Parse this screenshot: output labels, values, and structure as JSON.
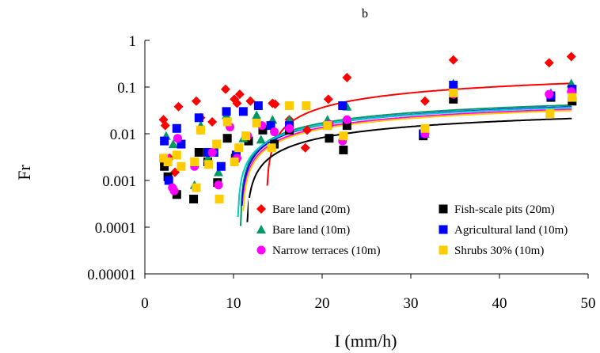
{
  "chart_data": {
    "type": "scatter",
    "title": "b",
    "xlabel": "I (mm/h)",
    "ylabel": "Fr",
    "xlim": [
      0,
      50
    ],
    "ylim": [
      1e-05,
      1
    ],
    "yscale": "log",
    "x_ticks": [
      "0",
      "10",
      "20",
      "30",
      "40",
      "50"
    ],
    "x_tick_values": [
      0,
      10,
      20,
      30,
      40,
      50
    ],
    "y_ticks": [
      "1",
      "0.1",
      "0.01",
      "0.001",
      "0.0001",
      "0.00001"
    ],
    "y_tick_values": [
      1,
      0.1,
      0.01,
      0.001,
      0.0001,
      1e-05
    ],
    "grid": false,
    "legend_position": "bottom-center",
    "series": [
      {
        "name": "Bare land (20m)",
        "color": "#ff0000",
        "marker": "diamond",
        "points": [
          [
            2.1,
            0.02
          ],
          [
            2.3,
            0.015
          ],
          [
            2.8,
            0.003
          ],
          [
            3.4,
            0.0015
          ],
          [
            3.8,
            0.038
          ],
          [
            5.8,
            0.05
          ],
          [
            6.3,
            0.022
          ],
          [
            7.6,
            0.018
          ],
          [
            9.1,
            0.09
          ],
          [
            10.1,
            0.055
          ],
          [
            10.4,
            0.045
          ],
          [
            10.7,
            0.07
          ],
          [
            11.9,
            0.05
          ],
          [
            14.4,
            0.045
          ],
          [
            14.7,
            0.043
          ],
          [
            16.3,
            0.02
          ],
          [
            18.1,
            0.005
          ],
          [
            18.3,
            0.012
          ],
          [
            20.7,
            0.055
          ],
          [
            22.8,
            0.16
          ],
          [
            31.6,
            0.05
          ],
          [
            34.8,
            0.38
          ],
          [
            45.6,
            0.33
          ],
          [
            48.1,
            0.45
          ]
        ]
      },
      {
        "name": "Fish-scale pits (20m)",
        "color": "#000000",
        "marker": "square",
        "points": [
          [
            2.2,
            0.002
          ],
          [
            2.6,
            0.0012
          ],
          [
            3.6,
            0.0005
          ],
          [
            5.5,
            0.0004
          ],
          [
            6.1,
            0.004
          ],
          [
            7.1,
            0.0025
          ],
          [
            8.2,
            0.0009
          ],
          [
            9.3,
            0.008
          ],
          [
            10.2,
            0.003
          ],
          [
            11.7,
            0.007
          ],
          [
            13.3,
            0.012
          ],
          [
            14.6,
            0.006
          ],
          [
            16.3,
            0.012
          ],
          [
            20.8,
            0.008
          ],
          [
            22.4,
            0.0045
          ],
          [
            22.8,
            0.015
          ],
          [
            31.4,
            0.009
          ],
          [
            34.8,
            0.055
          ],
          [
            45.8,
            0.06
          ],
          [
            48.2,
            0.05
          ]
        ]
      },
      {
        "name": "Bare land (10m)",
        "color": "#009966",
        "marker": "triangle",
        "points": [
          [
            2.4,
            0.009
          ],
          [
            3.2,
            0.006
          ],
          [
            5.6,
            0.0008
          ],
          [
            6.3,
            0.015
          ],
          [
            7.1,
            0.003
          ],
          [
            8.3,
            0.0015
          ],
          [
            9.2,
            0.025
          ],
          [
            10.3,
            0.004
          ],
          [
            11.1,
            0.008
          ],
          [
            12.6,
            0.025
          ],
          [
            13.1,
            0.0075
          ],
          [
            14.4,
            0.02
          ],
          [
            16.3,
            0.02
          ],
          [
            20.6,
            0.02
          ],
          [
            22.8,
            0.038
          ],
          [
            31.6,
            0.01
          ],
          [
            34.8,
            0.12
          ],
          [
            45.8,
            0.075
          ],
          [
            48.1,
            0.12
          ]
        ]
      },
      {
        "name": "Agricultural land (10m)",
        "color": "#0000ff",
        "marker": "square",
        "points": [
          [
            2.2,
            0.007
          ],
          [
            2.7,
            0.001
          ],
          [
            3.6,
            0.013
          ],
          [
            4.1,
            0.006
          ],
          [
            6.1,
            0.022
          ],
          [
            7.1,
            0.004
          ],
          [
            7.8,
            0.004
          ],
          [
            8.6,
            0.002
          ],
          [
            9.2,
            0.03
          ],
          [
            10.3,
            0.0035
          ],
          [
            11.1,
            0.03
          ],
          [
            12.8,
            0.04
          ],
          [
            14.2,
            0.015
          ],
          [
            16.3,
            0.015
          ],
          [
            20.6,
            0.015
          ],
          [
            22.3,
            0.04
          ],
          [
            31.4,
            0.01
          ],
          [
            34.8,
            0.11
          ],
          [
            45.8,
            0.065
          ],
          [
            48.2,
            0.09
          ]
        ]
      },
      {
        "name": "Narrow terraces (10m)",
        "color": "#ff00ff",
        "marker": "circle",
        "points": [
          [
            2.4,
            0.003
          ],
          [
            3.1,
            0.0007
          ],
          [
            3.3,
            0.0006
          ],
          [
            3.7,
            0.008
          ],
          [
            5.6,
            0.002
          ],
          [
            6.3,
            0.012
          ],
          [
            7.6,
            0.004
          ],
          [
            8.3,
            0.0008
          ],
          [
            9.6,
            0.014
          ],
          [
            10.4,
            0.003
          ],
          [
            11.6,
            0.009
          ],
          [
            13.2,
            0.015
          ],
          [
            14.6,
            0.011
          ],
          [
            16.3,
            0.013
          ],
          [
            20.8,
            0.016
          ],
          [
            22.3,
            0.007
          ],
          [
            22.8,
            0.02
          ],
          [
            31.6,
            0.01
          ],
          [
            34.8,
            0.07
          ],
          [
            45.6,
            0.07
          ],
          [
            48.1,
            0.08
          ]
        ]
      },
      {
        "name": "Shrubs 30% (10m)",
        "color": "#ffcc00",
        "marker": "square",
        "points": [
          [
            2.1,
            0.003
          ],
          [
            2.6,
            0.0025
          ],
          [
            3.6,
            0.0035
          ],
          [
            4.1,
            0.002
          ],
          [
            5.6,
            0.0025
          ],
          [
            5.8,
            0.0007
          ],
          [
            6.3,
            0.012
          ],
          [
            7.2,
            0.0022
          ],
          [
            8.1,
            0.006
          ],
          [
            8.4,
            0.0004
          ],
          [
            9.3,
            0.018
          ],
          [
            10.1,
            0.0025
          ],
          [
            10.6,
            0.005
          ],
          [
            11.4,
            0.009
          ],
          [
            12.6,
            0.017
          ],
          [
            14.3,
            0.005
          ],
          [
            16.3,
            0.04
          ],
          [
            18.2,
            0.04
          ],
          [
            20.6,
            0.015
          ],
          [
            22.4,
            0.009
          ],
          [
            31.6,
            0.013
          ],
          [
            34.8,
            0.075
          ],
          [
            45.7,
            0.027
          ],
          [
            48.2,
            0.06
          ]
        ]
      }
    ],
    "fit_curves": [
      {
        "color": "#ff0000",
        "a": 0.22,
        "b": 0.25
      },
      {
        "color": "#009966",
        "a": 0.063,
        "b": 0.065
      },
      {
        "color": "#0000ff",
        "a": 0.058,
        "b": 0.06
      },
      {
        "color": "#00cccc",
        "a": 0.055,
        "b": 0.056
      },
      {
        "color": "#ff00ff",
        "a": 0.052,
        "b": 0.054
      },
      {
        "color": "#ffcc00",
        "a": 0.049,
        "b": 0.051
      },
      {
        "color": "#000000",
        "a": 0.034,
        "b": 0.036
      }
    ]
  }
}
